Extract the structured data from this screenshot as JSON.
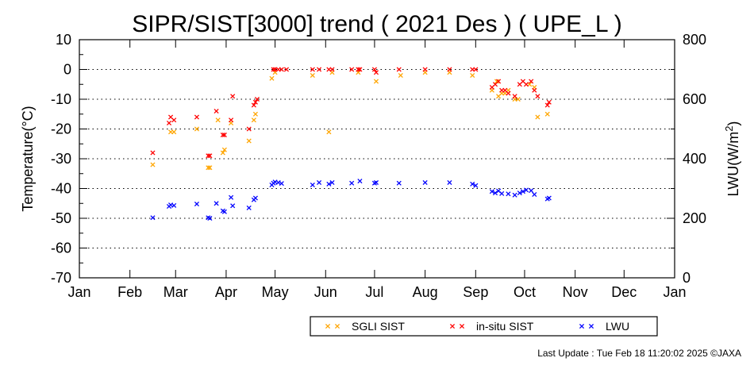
{
  "chart_data": {
    "type": "scatter",
    "title": "SIPR/SIST[3000] trend ( 2021 Des ) ( UPE_L )",
    "xlabel": "",
    "ylabel": "Temperature(°C)",
    "ylabel2_main": "LWU(W/m",
    "ylabel2_sup": "2",
    "ylabel2_close": ")",
    "months": [
      "Jan",
      "Feb",
      "Mar",
      "Apr",
      "May",
      "Jun",
      "Jul",
      "Aug",
      "Sep",
      "Oct",
      "Nov",
      "Dec",
      "Jan"
    ],
    "xlim_days": [
      0,
      365
    ],
    "ylim": [
      -70,
      10
    ],
    "yticks": [
      "10",
      "0",
      "-10",
      "-20",
      "-30",
      "-40",
      "-50",
      "-60",
      "-70"
    ],
    "y2lim": [
      0,
      800
    ],
    "y2ticks": [
      "800",
      "600",
      "400",
      "200",
      "0"
    ],
    "grid": "dotted horizontal",
    "legend_position": "bottom",
    "series": [
      {
        "name": "SGLI SIST",
        "marker": "x",
        "color": "#ffa500",
        "axis": "left",
        "points": [
          {
            "x": "Feb 15",
            "y": -32
          },
          {
            "x": "Feb 26",
            "y": -21
          },
          {
            "x": "Feb 28",
            "y": -21
          },
          {
            "x": "Mar 14",
            "y": -20
          },
          {
            "x": "Mar 21",
            "y": -33
          },
          {
            "x": "Mar 22",
            "y": -33
          },
          {
            "x": "Mar 27",
            "y": -17
          },
          {
            "x": "Mar 30",
            "y": -28
          },
          {
            "x": "Mar 31",
            "y": -27
          },
          {
            "x": "Apr 4",
            "y": -18
          },
          {
            "x": "Apr 15",
            "y": -24
          },
          {
            "x": "Apr 18",
            "y": -17
          },
          {
            "x": "Apr 19",
            "y": -15
          },
          {
            "x": "Apr 29",
            "y": -3
          },
          {
            "x": "May 1",
            "y": -1
          },
          {
            "x": "May 24",
            "y": -2
          },
          {
            "x": "Jun 3",
            "y": -21
          },
          {
            "x": "Jun 5",
            "y": -1
          },
          {
            "x": "Jun 21",
            "y": -1
          },
          {
            "x": "Jul 2",
            "y": -4
          },
          {
            "x": "Jul 17",
            "y": -2
          },
          {
            "x": "Aug 1",
            "y": -1
          },
          {
            "x": "Aug 16",
            "y": -1
          },
          {
            "x": "Aug 30",
            "y": -2
          },
          {
            "x": "Sep 11",
            "y": -7
          },
          {
            "x": "Sep 14",
            "y": -4
          },
          {
            "x": "Sep 15",
            "y": -9
          },
          {
            "x": "Sep 17",
            "y": -8
          },
          {
            "x": "Sep 19",
            "y": -8
          },
          {
            "x": "Sep 21",
            "y": -7
          },
          {
            "x": "Sep 25",
            "y": -10
          },
          {
            "x": "Sep 27",
            "y": -10
          },
          {
            "x": "Oct 4",
            "y": -5
          },
          {
            "x": "Oct 7",
            "y": -6
          },
          {
            "x": "Oct 9",
            "y": -16
          },
          {
            "x": "Oct 15",
            "y": -15
          }
        ]
      },
      {
        "name": "in-situ SIST",
        "marker": "x",
        "color": "#ff0000",
        "axis": "left",
        "points": [
          {
            "x": "Feb 15",
            "y": -28
          },
          {
            "x": "Feb 25",
            "y": -18
          },
          {
            "x": "Feb 26",
            "y": -16
          },
          {
            "x": "Feb 28",
            "y": -17
          },
          {
            "x": "Mar 14",
            "y": -16
          },
          {
            "x": "Mar 21",
            "y": -29
          },
          {
            "x": "Mar 22",
            "y": -29
          },
          {
            "x": "Mar 26",
            "y": -14
          },
          {
            "x": "Mar 30",
            "y": -22
          },
          {
            "x": "Mar 31",
            "y": -22
          },
          {
            "x": "Apr 5",
            "y": -9
          },
          {
            "x": "Apr 4",
            "y": -17
          },
          {
            "x": "Apr 15",
            "y": -20
          },
          {
            "x": "Apr 18",
            "y": -12
          },
          {
            "x": "Apr 19",
            "y": -11
          },
          {
            "x": "Apr 20",
            "y": -10
          },
          {
            "x": "Apr 30",
            "y": 0
          },
          {
            "x": "May 1",
            "y": 0
          },
          {
            "x": "May 3",
            "y": 0
          },
          {
            "x": "May 5",
            "y": 0
          },
          {
            "x": "May 8",
            "y": 0
          },
          {
            "x": "May 24",
            "y": 0
          },
          {
            "x": "May 28",
            "y": 0
          },
          {
            "x": "Jun 3",
            "y": 0
          },
          {
            "x": "Jun 5",
            "y": 0
          },
          {
            "x": "Jun 17",
            "y": 0
          },
          {
            "x": "Jun 21",
            "y": 0
          },
          {
            "x": "Jun 22",
            "y": 0
          },
          {
            "x": "Jul 1",
            "y": 0
          },
          {
            "x": "Jul 2",
            "y": -1
          },
          {
            "x": "Jul 16",
            "y": 0
          },
          {
            "x": "Aug 1",
            "y": 0
          },
          {
            "x": "Aug 16",
            "y": 0
          },
          {
            "x": "Aug 30",
            "y": 0
          },
          {
            "x": "Sep 1",
            "y": 0
          },
          {
            "x": "Sep 11",
            "y": -6
          },
          {
            "x": "Sep 13",
            "y": -5
          },
          {
            "x": "Sep 15",
            "y": -4
          },
          {
            "x": "Sep 17",
            "y": -7
          },
          {
            "x": "Sep 19",
            "y": -7
          },
          {
            "x": "Sep 21",
            "y": -8
          },
          {
            "x": "Sep 25",
            "y": -9
          },
          {
            "x": "Sep 28",
            "y": -5
          },
          {
            "x": "Sep 30",
            "y": -4
          },
          {
            "x": "Oct 2",
            "y": -5
          },
          {
            "x": "Oct 5",
            "y": -4
          },
          {
            "x": "Oct 7",
            "y": -7
          },
          {
            "x": "Oct 9",
            "y": -9
          },
          {
            "x": "Oct 15",
            "y": -12
          },
          {
            "x": "Oct 16",
            "y": -11
          }
        ]
      },
      {
        "name": "LWU",
        "marker": "x",
        "color": "#0000ff",
        "axis": "right",
        "points": [
          {
            "x": "Feb 15",
            "y": 202
          },
          {
            "x": "Feb 25",
            "y": 240
          },
          {
            "x": "Feb 26",
            "y": 245
          },
          {
            "x": "Feb 28",
            "y": 243
          },
          {
            "x": "Mar 14",
            "y": 248
          },
          {
            "x": "Mar 21",
            "y": 202
          },
          {
            "x": "Mar 22",
            "y": 200
          },
          {
            "x": "Mar 26",
            "y": 250
          },
          {
            "x": "Mar 30",
            "y": 225
          },
          {
            "x": "Mar 31",
            "y": 222
          },
          {
            "x": "Apr 5",
            "y": 242
          },
          {
            "x": "Apr 4",
            "y": 270
          },
          {
            "x": "Apr 15",
            "y": 235
          },
          {
            "x": "Apr 18",
            "y": 262
          },
          {
            "x": "Apr 19",
            "y": 268
          },
          {
            "x": "Apr 29",
            "y": 312
          },
          {
            "x": "Apr 30",
            "y": 318
          },
          {
            "x": "May 1",
            "y": 322
          },
          {
            "x": "May 3",
            "y": 320
          },
          {
            "x": "May 5",
            "y": 317
          },
          {
            "x": "May 24",
            "y": 312
          },
          {
            "x": "May 28",
            "y": 320
          },
          {
            "x": "Jun 3",
            "y": 315
          },
          {
            "x": "Jun 5",
            "y": 320
          },
          {
            "x": "Jun 17",
            "y": 318
          },
          {
            "x": "Jun 22",
            "y": 325
          },
          {
            "x": "Jul 1",
            "y": 318
          },
          {
            "x": "Jul 2",
            "y": 320
          },
          {
            "x": "Jul 16",
            "y": 318
          },
          {
            "x": "Aug 1",
            "y": 320
          },
          {
            "x": "Aug 16",
            "y": 320
          },
          {
            "x": "Aug 30",
            "y": 315
          },
          {
            "x": "Sep 1",
            "y": 310
          },
          {
            "x": "Sep 11",
            "y": 290
          },
          {
            "x": "Sep 13",
            "y": 285
          },
          {
            "x": "Sep 15",
            "y": 292
          },
          {
            "x": "Sep 17",
            "y": 283
          },
          {
            "x": "Sep 21",
            "y": 282
          },
          {
            "x": "Sep 25",
            "y": 278
          },
          {
            "x": "Sep 28",
            "y": 285
          },
          {
            "x": "Sep 30",
            "y": 290
          },
          {
            "x": "Oct 2",
            "y": 295
          },
          {
            "x": "Oct 5",
            "y": 293
          },
          {
            "x": "Oct 7",
            "y": 280
          },
          {
            "x": "Oct 15",
            "y": 265
          },
          {
            "x": "Oct 16",
            "y": 268
          }
        ]
      }
    ]
  },
  "footer": {
    "last_update": "Last Update : Tue Feb 18 11:20:02 2025 ©JAXA"
  }
}
